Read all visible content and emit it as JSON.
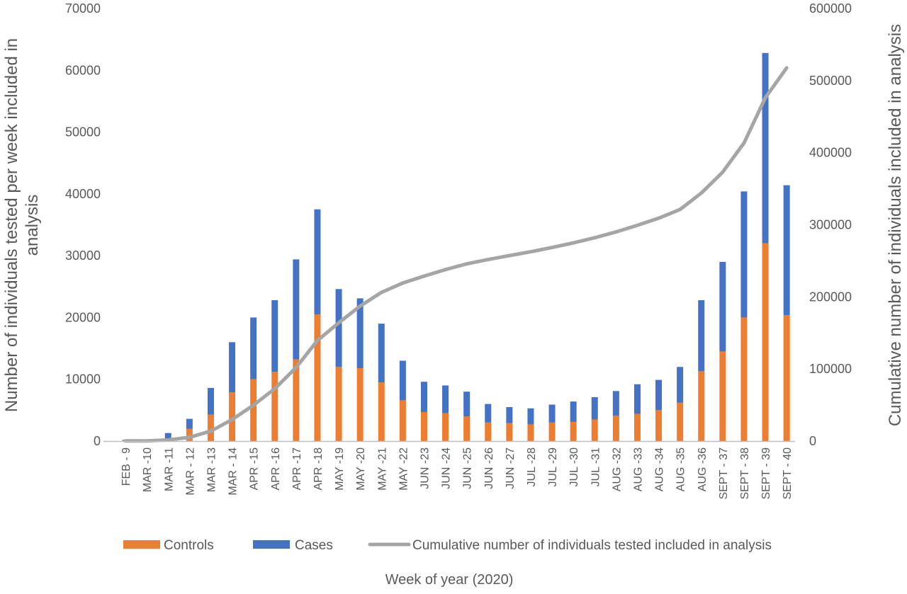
{
  "chart_data": {
    "type": "bar",
    "stacked": true,
    "xlabel": "Week of year (2020)",
    "ylabel": [
      "Number of individuals tested per week included in",
      "analysis"
    ],
    "y2label": "Cumulative number of individuals included in analysis",
    "ylim": [
      0,
      70000
    ],
    "y2lim": [
      0,
      600000
    ],
    "yticks": [
      0,
      10000,
      20000,
      30000,
      40000,
      50000,
      60000,
      70000
    ],
    "y2ticks": [
      0,
      100000,
      200000,
      300000,
      400000,
      500000,
      600000
    ],
    "grid": false,
    "legend_position": "bottom",
    "categories": [
      "FEB - 9",
      "MAR -10",
      "MAR -11",
      "MAR - 12",
      "MAR -13",
      "MAR - 14",
      "APR -15",
      "APR -16",
      "APR -17",
      "APR -18",
      "MAY -19",
      "MAY -20",
      "MAY -21",
      "MAY -22",
      "JUN -23",
      "JUN -24",
      "JUN -25",
      "JUN -26",
      "JUN -27",
      "JUL -28",
      "JUL -29",
      "JUL -30",
      "JUL -31",
      "AUG -32",
      "AUG -33",
      "AUG -34",
      "AUG -35",
      "AUG -36",
      "SEPT - 37",
      "SEPT - 38",
      "SEPT - 39",
      "SEPT - 40"
    ],
    "series": [
      {
        "name": "Controls",
        "kind": "bar",
        "color": "#ED7D31",
        "values": [
          100,
          50,
          300,
          2000,
          4300,
          7900,
          10000,
          11200,
          13200,
          20500,
          12000,
          11800,
          9500,
          6600,
          4700,
          4500,
          4000,
          3000,
          2900,
          2700,
          3000,
          3100,
          3500,
          4100,
          4400,
          5000,
          6200,
          11300,
          14500,
          20000,
          32000,
          20400
        ]
      },
      {
        "name": "Cases",
        "kind": "bar",
        "color": "#4472C4",
        "values": [
          100,
          50,
          1000,
          1600,
          4300,
          8100,
          10000,
          11600,
          16200,
          17000,
          12600,
          11300,
          9500,
          6400,
          4900,
          4500,
          4000,
          3000,
          2600,
          2600,
          2900,
          3300,
          3600,
          4000,
          4800,
          4900,
          5800,
          11500,
          14500,
          20400,
          30800,
          21000
        ]
      },
      {
        "name": "Cumulative number of individuals tested included in analysis",
        "kind": "line",
        "axis": "right",
        "color": "#A5A5A5",
        "values": [
          200,
          300,
          1600,
          5200,
          13800,
          29800,
          49800,
          72600,
          102000,
          139500,
          164100,
          187200,
          206200,
          219200,
          228800,
          237800,
          245800,
          251800,
          257300,
          262600,
          268500,
          274900,
          282000,
          290100,
          299300,
          309200,
          321200,
          344000,
          373000,
          413400,
          476200,
          517600
        ]
      }
    ]
  }
}
